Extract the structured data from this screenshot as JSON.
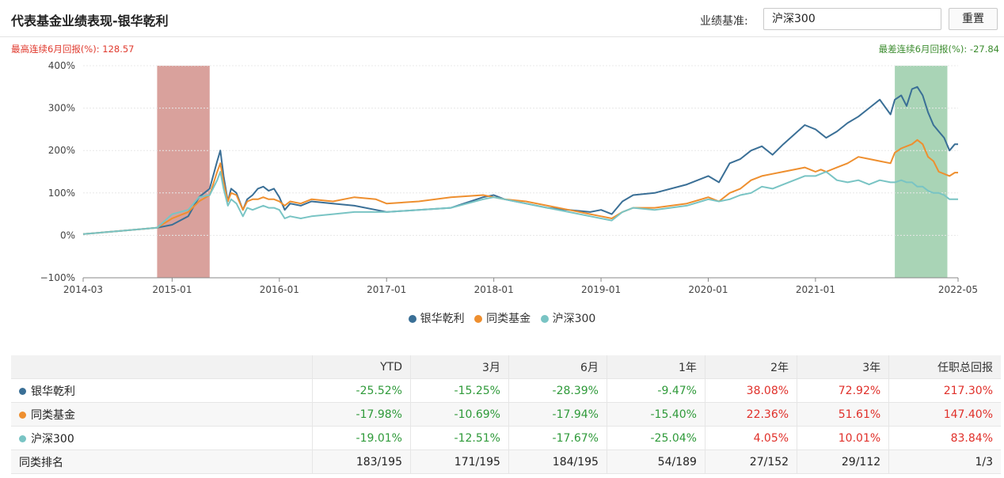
{
  "header": {
    "title": "代表基金业绩表现-银华乾利",
    "benchmark_label": "业绩基准:",
    "benchmark_value": "沪深300",
    "reset_label": "重置"
  },
  "best_streak": {
    "label": "最高连续6月回报(%):",
    "value": "128.57"
  },
  "worst_streak": {
    "label": "最差连续6月回报(%):",
    "value": "-27.84"
  },
  "chart_data": {
    "type": "line",
    "title": "",
    "xlabel": "",
    "ylabel": "",
    "ylim": [
      -100,
      400
    ],
    "yticks": [
      "−100%",
      "0%",
      "100%",
      "200%",
      "300%",
      "400%"
    ],
    "xticks": [
      "2014-03",
      "2015-01",
      "2016-01",
      "2017-01",
      "2018-01",
      "2019-01",
      "2020-01",
      "2021-01",
      "2022-05"
    ],
    "grid": true,
    "legend": "bottom",
    "highlights": [
      {
        "from": 2014.86,
        "to": 2015.35,
        "color": "#d9a19c"
      },
      {
        "from": 2021.74,
        "to": 2022.23,
        "color": "#a9d4b6"
      }
    ],
    "series": [
      {
        "name": "银华乾利",
        "color": "#3a6f96",
        "x": [
          2014.17,
          2014.5,
          2014.86,
          2015.0,
          2015.15,
          2015.25,
          2015.35,
          2015.42,
          2015.45,
          2015.48,
          2015.52,
          2015.55,
          2015.6,
          2015.66,
          2015.7,
          2015.75,
          2015.8,
          2015.85,
          2015.9,
          2015.95,
          2016.0,
          2016.05,
          2016.1,
          2016.2,
          2016.3,
          2016.5,
          2016.7,
          2016.9,
          2017.0,
          2017.3,
          2017.6,
          2017.9,
          2018.0,
          2018.1,
          2018.3,
          2018.5,
          2018.7,
          2018.9,
          2019.0,
          2019.1,
          2019.2,
          2019.3,
          2019.5,
          2019.8,
          2020.0,
          2020.1,
          2020.2,
          2020.3,
          2020.4,
          2020.5,
          2020.6,
          2020.7,
          2020.9,
          2021.0,
          2021.05,
          2021.1,
          2021.2,
          2021.3,
          2021.4,
          2021.5,
          2021.6,
          2021.7,
          2021.74,
          2021.8,
          2021.85,
          2021.9,
          2021.95,
          2022.0,
          2022.05,
          2022.1,
          2022.15,
          2022.2,
          2022.25,
          2022.3,
          2022.33
        ],
        "y": [
          3,
          10,
          18,
          25,
          45,
          90,
          110,
          175,
          200,
          140,
          80,
          110,
          100,
          60,
          85,
          95,
          110,
          115,
          105,
          110,
          90,
          60,
          75,
          70,
          80,
          75,
          70,
          60,
          55,
          60,
          65,
          90,
          95,
          85,
          75,
          65,
          60,
          55,
          60,
          50,
          80,
          95,
          100,
          120,
          140,
          125,
          170,
          180,
          200,
          210,
          190,
          215,
          260,
          250,
          240,
          230,
          245,
          265,
          280,
          300,
          320,
          285,
          320,
          330,
          305,
          345,
          350,
          330,
          290,
          260,
          245,
          230,
          200,
          215,
          215
        ]
      },
      {
        "name": "同类基金",
        "color": "#ee8f2f",
        "x": [
          2014.17,
          2014.5,
          2014.86,
          2015.0,
          2015.15,
          2015.25,
          2015.35,
          2015.42,
          2015.45,
          2015.48,
          2015.52,
          2015.55,
          2015.6,
          2015.66,
          2015.7,
          2015.75,
          2015.8,
          2015.85,
          2015.9,
          2015.95,
          2016.0,
          2016.05,
          2016.1,
          2016.2,
          2016.3,
          2016.5,
          2016.7,
          2016.9,
          2017.0,
          2017.3,
          2017.6,
          2017.9,
          2018.0,
          2018.1,
          2018.3,
          2018.5,
          2018.7,
          2018.9,
          2019.0,
          2019.1,
          2019.2,
          2019.3,
          2019.5,
          2019.8,
          2020.0,
          2020.1,
          2020.2,
          2020.3,
          2020.4,
          2020.5,
          2020.6,
          2020.7,
          2020.9,
          2021.0,
          2021.05,
          2021.1,
          2021.2,
          2021.3,
          2021.4,
          2021.5,
          2021.6,
          2021.7,
          2021.74,
          2021.8,
          2021.85,
          2021.9,
          2021.95,
          2022.0,
          2022.05,
          2022.1,
          2022.15,
          2022.2,
          2022.25,
          2022.3,
          2022.33
        ],
        "y": [
          3,
          10,
          18,
          40,
          55,
          80,
          95,
          150,
          170,
          125,
          80,
          100,
          95,
          60,
          80,
          85,
          85,
          90,
          85,
          85,
          80,
          70,
          80,
          75,
          85,
          80,
          90,
          85,
          75,
          80,
          90,
          95,
          90,
          85,
          80,
          70,
          60,
          50,
          45,
          40,
          55,
          65,
          65,
          75,
          90,
          80,
          100,
          110,
          130,
          140,
          145,
          150,
          160,
          150,
          155,
          150,
          160,
          170,
          185,
          180,
          175,
          170,
          195,
          205,
          210,
          215,
          225,
          215,
          185,
          175,
          150,
          145,
          140,
          148,
          148
        ]
      },
      {
        "name": "沪深300",
        "color": "#79c4c4",
        "x": [
          2014.17,
          2014.5,
          2014.86,
          2015.0,
          2015.15,
          2015.25,
          2015.35,
          2015.42,
          2015.45,
          2015.48,
          2015.52,
          2015.55,
          2015.6,
          2015.66,
          2015.7,
          2015.75,
          2015.8,
          2015.85,
          2015.9,
          2015.95,
          2016.0,
          2016.05,
          2016.1,
          2016.2,
          2016.3,
          2016.5,
          2016.7,
          2016.9,
          2017.0,
          2017.3,
          2017.6,
          2017.9,
          2018.0,
          2018.1,
          2018.3,
          2018.5,
          2018.7,
          2018.9,
          2019.0,
          2019.1,
          2019.2,
          2019.3,
          2019.5,
          2019.8,
          2020.0,
          2020.1,
          2020.2,
          2020.3,
          2020.4,
          2020.5,
          2020.6,
          2020.7,
          2020.9,
          2021.0,
          2021.05,
          2021.1,
          2021.2,
          2021.3,
          2021.4,
          2021.5,
          2021.6,
          2021.7,
          2021.74,
          2021.8,
          2021.85,
          2021.9,
          2021.95,
          2022.0,
          2022.05,
          2022.1,
          2022.15,
          2022.2,
          2022.25,
          2022.3,
          2022.33
        ],
        "y": [
          3,
          10,
          18,
          50,
          60,
          90,
          95,
          130,
          150,
          110,
          70,
          85,
          75,
          45,
          65,
          60,
          65,
          70,
          65,
          65,
          60,
          40,
          45,
          40,
          45,
          50,
          55,
          55,
          55,
          60,
          65,
          85,
          90,
          85,
          75,
          65,
          55,
          45,
          40,
          35,
          55,
          65,
          60,
          70,
          85,
          80,
          85,
          95,
          100,
          115,
          110,
          120,
          140,
          140,
          145,
          150,
          130,
          125,
          130,
          120,
          130,
          125,
          125,
          130,
          125,
          125,
          115,
          115,
          105,
          100,
          100,
          95,
          85,
          85,
          85
        ]
      }
    ]
  },
  "table": {
    "headers": [
      "",
      "YTD",
      "3月",
      "6月",
      "1年",
      "2年",
      "3年",
      "任职总回报"
    ],
    "rows": [
      {
        "name": "银华乾利",
        "color": "#3a6f96",
        "cells": [
          "-25.52%",
          "-15.25%",
          "-28.39%",
          "-9.47%",
          "38.08%",
          "72.92%",
          "217.30%"
        ]
      },
      {
        "name": "同类基金",
        "color": "#ee8f2f",
        "cells": [
          "-17.98%",
          "-10.69%",
          "-17.94%",
          "-15.40%",
          "22.36%",
          "51.61%",
          "147.40%"
        ]
      },
      {
        "name": "沪深300",
        "color": "#79c4c4",
        "cells": [
          "-19.01%",
          "-12.51%",
          "-17.67%",
          "-25.04%",
          "4.05%",
          "10.01%",
          "83.84%"
        ]
      }
    ],
    "rank_row": {
      "name": "同类排名",
      "cells": [
        "183/195",
        "171/195",
        "184/195",
        "54/189",
        "27/152",
        "29/112",
        "1/3"
      ]
    }
  }
}
